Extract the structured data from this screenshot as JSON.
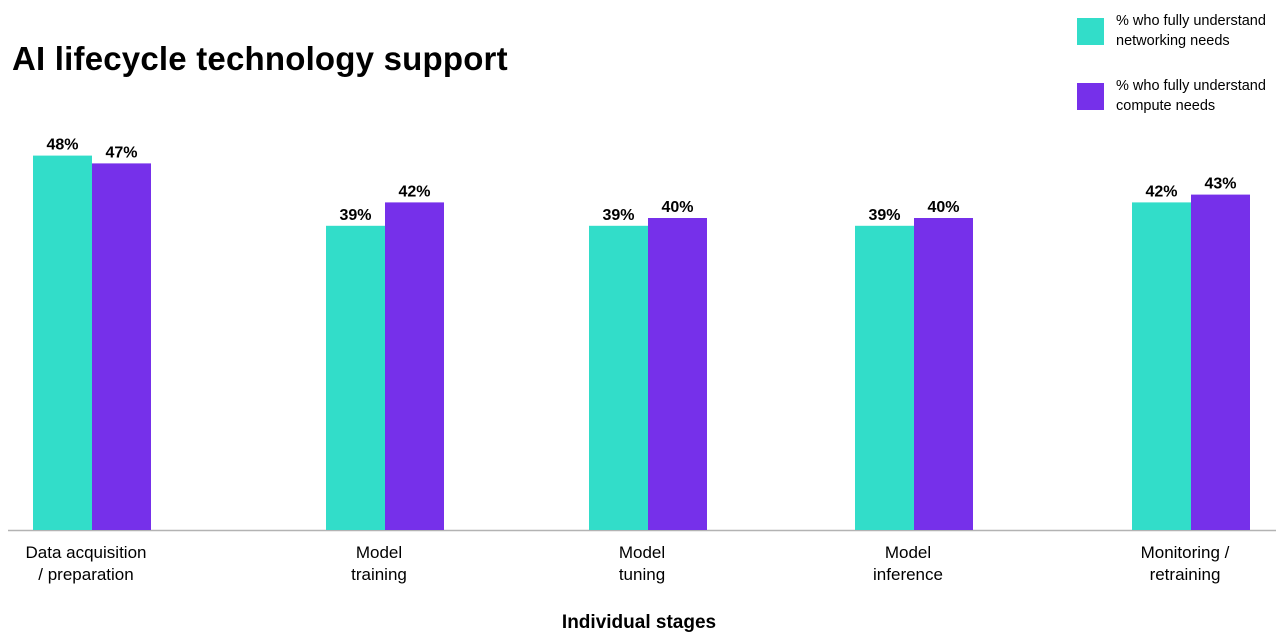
{
  "chart_data": {
    "type": "bar",
    "title": "AI lifecycle technology support",
    "xlabel": "Individual stages",
    "ylabel": "",
    "ylim": [
      0,
      50
    ],
    "grid": false,
    "legend_position": "top-right",
    "categories": [
      "Data acquisition\n/ preparation",
      "Model\ntraining",
      "Model\ntuning",
      "Model\ninference",
      "Monitoring /\nretraining"
    ],
    "series": [
      {
        "name": "% who fully understand networking needs",
        "color": "#32ddc9",
        "values": [
          48,
          39,
          39,
          39,
          42
        ],
        "labels": [
          "48%",
          "39%",
          "39%",
          "39%",
          "42%"
        ]
      },
      {
        "name": "% who fully understand compute needs",
        "color": "#7630ea",
        "values": [
          47,
          42,
          40,
          40,
          43
        ],
        "labels": [
          "47%",
          "42%",
          "40%",
          "40%",
          "43%"
        ]
      }
    ]
  },
  "legend": {
    "items": [
      {
        "text": "% who fully understand\nnetworking needs",
        "color": "#32ddc9"
      },
      {
        "text": "% who fully understand\ncompute needs",
        "color": "#7630ea"
      }
    ]
  }
}
